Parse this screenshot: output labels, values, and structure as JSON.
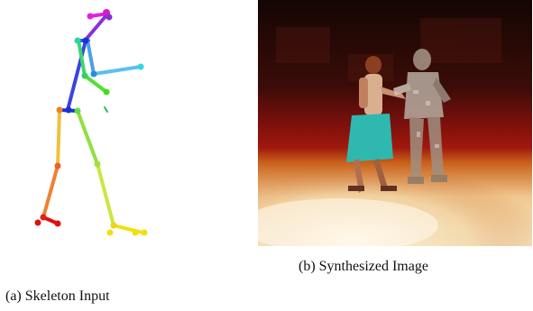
{
  "figure": {
    "caption_a": "(a) Skeleton Input",
    "caption_b": "(b) Synthesized Image"
  },
  "skeleton": {
    "limb_colors": {
      "head_magenta": "#e020e0",
      "neck_blue": "#1a2fd8",
      "torso_blue": "#3a44e0",
      "right_arm_teal": "#2fd2a0",
      "left_arm_lightblue": "#5aa8f0",
      "forearm_cyan": "#30d8e0",
      "right_leg_orange": "#f08020",
      "left_leg_green": "#90e040",
      "feet_red": "#e01010",
      "feet_yellow": "#f0e010"
    }
  },
  "photo": {
    "accent_colors": {
      "floor_light": "#f7e6c4",
      "backdrop_red": "#8a0f0c",
      "skirt_teal": "#2fb8b0"
    }
  }
}
